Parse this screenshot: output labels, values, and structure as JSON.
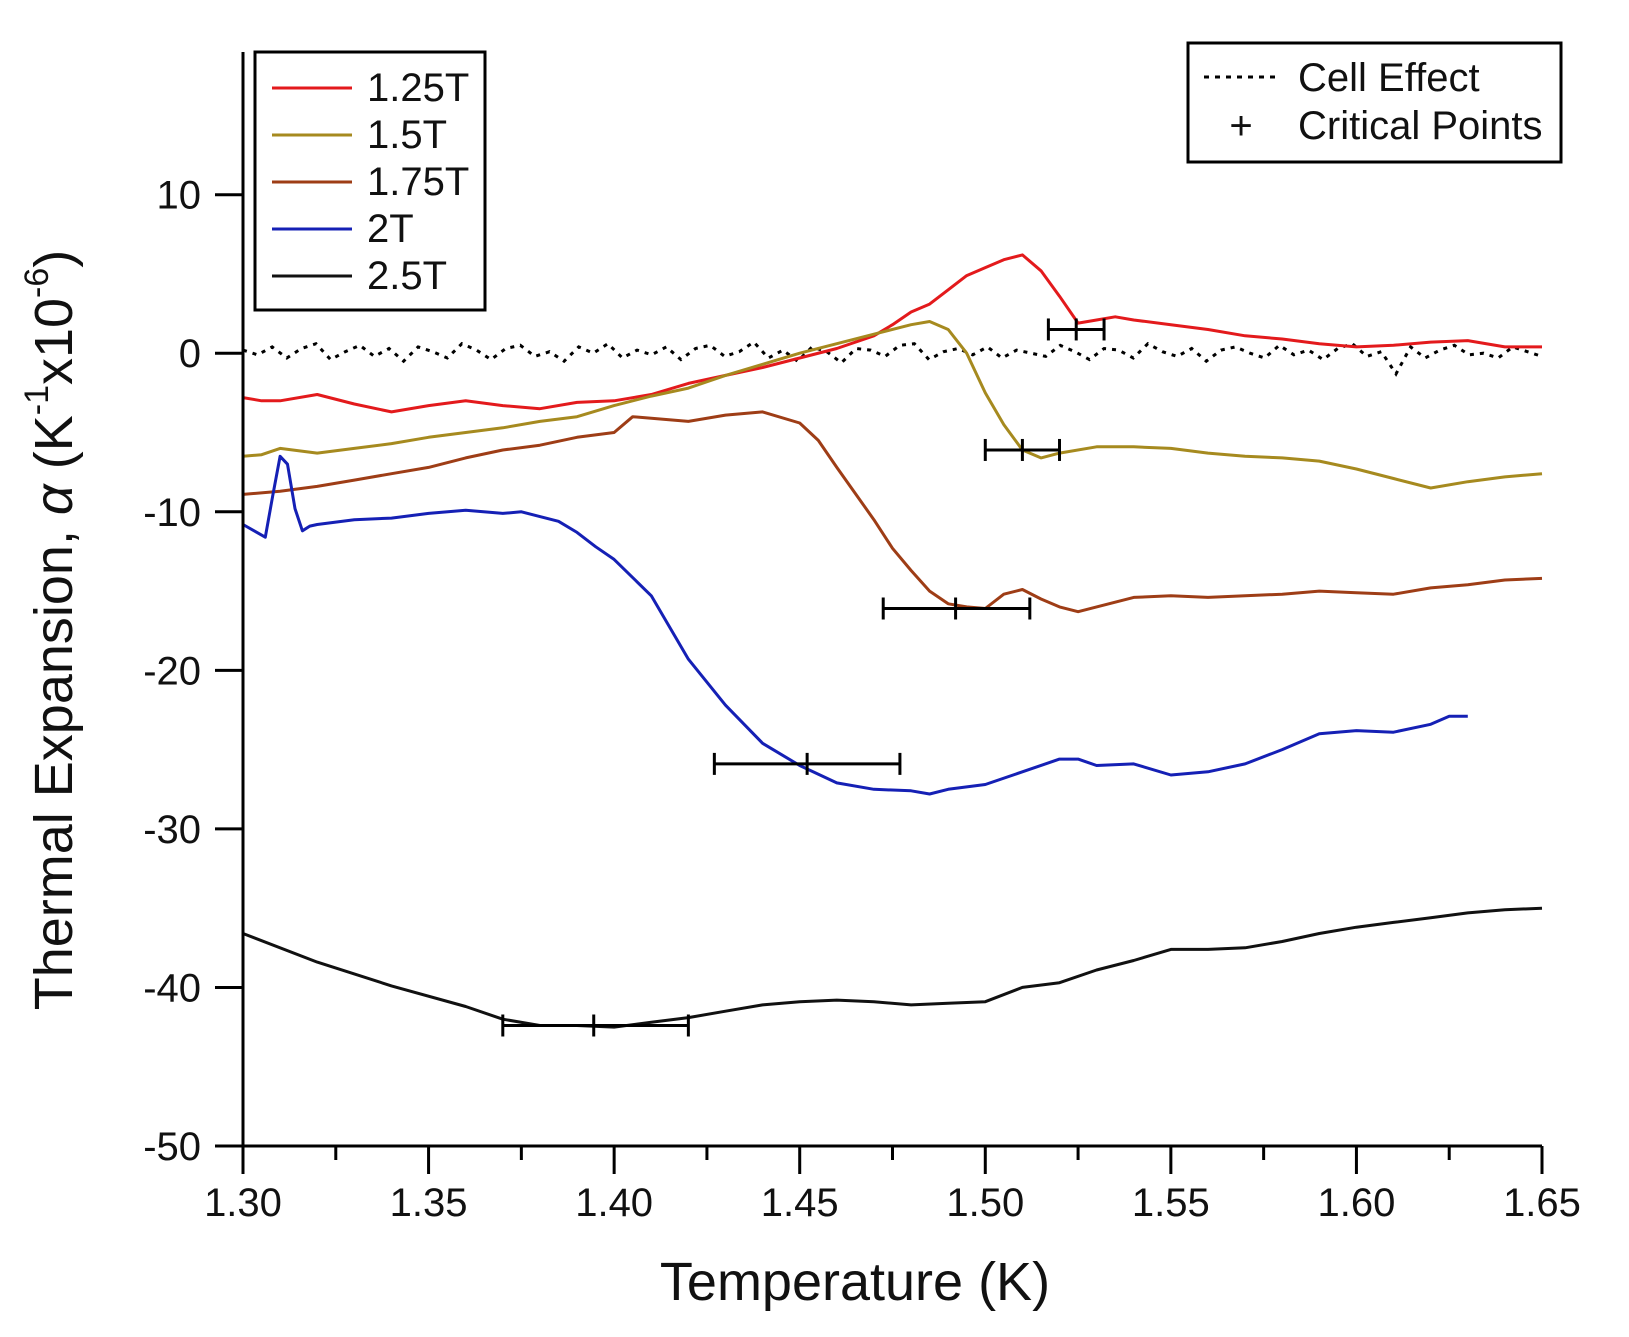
{
  "chart_data": {
    "type": "line",
    "xlabel": "Temperature (K)",
    "ylabel": {
      "prefix": "Thermal Expansion, ",
      "symbol": "α",
      "unit_open": " (K",
      "exp1": "-1",
      "unit_mid": "x10",
      "exp2": "-6",
      "unit_close": ")"
    },
    "xlim": [
      1.3,
      1.65
    ],
    "ylim": [
      -50,
      19
    ],
    "xticks": [
      1.3,
      1.35,
      1.4,
      1.45,
      1.5,
      1.55,
      1.6,
      1.65
    ],
    "xtick_labels": [
      "1.30",
      "1.35",
      "1.40",
      "1.45",
      "1.50",
      "1.55",
      "1.60",
      "1.65"
    ],
    "yticks": [
      10,
      0,
      -10,
      -20,
      -30,
      -40,
      -50
    ],
    "ytick_labels": [
      "10",
      "0",
      "-10",
      "-20",
      "-30",
      "-40",
      "-50"
    ],
    "legend": [
      "1.25T",
      "1.5T",
      "1.75T",
      "2T",
      "2.5T"
    ],
    "legend2": [
      "Cell Effect",
      "Critical Points"
    ],
    "legend2_marker": "+",
    "series": [
      {
        "name": "1.25T",
        "color": "#e31a1c",
        "x": [
          1.3,
          1.305,
          1.31,
          1.32,
          1.33,
          1.34,
          1.35,
          1.36,
          1.37,
          1.38,
          1.39,
          1.4,
          1.41,
          1.42,
          1.43,
          1.44,
          1.45,
          1.46,
          1.47,
          1.475,
          1.48,
          1.485,
          1.49,
          1.495,
          1.5,
          1.505,
          1.51,
          1.515,
          1.52,
          1.525,
          1.53,
          1.535,
          1.54,
          1.55,
          1.56,
          1.57,
          1.58,
          1.59,
          1.6,
          1.61,
          1.62,
          1.63,
          1.64,
          1.65
        ],
        "y": [
          -2.8,
          -3.0,
          -3.0,
          -2.6,
          -3.2,
          -3.7,
          -3.3,
          -3.0,
          -3.3,
          -3.5,
          -3.1,
          -3.0,
          -2.6,
          -1.9,
          -1.4,
          -0.9,
          -0.3,
          0.3,
          1.1,
          1.8,
          2.6,
          3.1,
          4.0,
          4.9,
          5.4,
          5.9,
          6.2,
          5.2,
          3.6,
          1.9,
          2.1,
          2.3,
          2.1,
          1.8,
          1.5,
          1.1,
          0.9,
          0.6,
          0.4,
          0.5,
          0.7,
          0.8,
          0.4,
          0.4
        ]
      },
      {
        "name": "1.5T",
        "color": "#a68a1f",
        "x": [
          1.3,
          1.305,
          1.31,
          1.32,
          1.33,
          1.34,
          1.35,
          1.36,
          1.37,
          1.38,
          1.39,
          1.4,
          1.41,
          1.42,
          1.43,
          1.44,
          1.45,
          1.46,
          1.47,
          1.48,
          1.485,
          1.49,
          1.495,
          1.5,
          1.505,
          1.51,
          1.515,
          1.52,
          1.53,
          1.54,
          1.55,
          1.56,
          1.57,
          1.58,
          1.59,
          1.6,
          1.61,
          1.62,
          1.63,
          1.64,
          1.65
        ],
        "y": [
          -6.5,
          -6.4,
          -6.0,
          -6.3,
          -6.0,
          -5.7,
          -5.3,
          -5.0,
          -4.7,
          -4.3,
          -4.0,
          -3.3,
          -2.7,
          -2.2,
          -1.4,
          -0.7,
          0.0,
          0.6,
          1.2,
          1.8,
          2.0,
          1.5,
          0.0,
          -2.5,
          -4.5,
          -6.1,
          -6.6,
          -6.3,
          -5.9,
          -5.9,
          -6.0,
          -6.3,
          -6.5,
          -6.6,
          -6.8,
          -7.3,
          -7.9,
          -8.5,
          -8.1,
          -7.8,
          -7.6
        ]
      },
      {
        "name": "1.75T",
        "color": "#9e3d16",
        "x": [
          1.3,
          1.31,
          1.32,
          1.33,
          1.34,
          1.35,
          1.36,
          1.37,
          1.38,
          1.39,
          1.4,
          1.405,
          1.41,
          1.42,
          1.43,
          1.44,
          1.45,
          1.455,
          1.46,
          1.47,
          1.475,
          1.48,
          1.485,
          1.49,
          1.495,
          1.5,
          1.505,
          1.51,
          1.515,
          1.52,
          1.525,
          1.53,
          1.54,
          1.55,
          1.56,
          1.57,
          1.58,
          1.59,
          1.6,
          1.61,
          1.62,
          1.63,
          1.64,
          1.65
        ],
        "y": [
          -8.9,
          -8.7,
          -8.4,
          -8.0,
          -7.6,
          -7.2,
          -6.6,
          -6.1,
          -5.8,
          -5.3,
          -5.0,
          -4.0,
          -4.1,
          -4.3,
          -3.9,
          -3.7,
          -4.4,
          -5.5,
          -7.2,
          -10.5,
          -12.3,
          -13.7,
          -15.0,
          -15.8,
          -16.0,
          -16.1,
          -15.2,
          -14.9,
          -15.5,
          -16.0,
          -16.3,
          -16.0,
          -15.4,
          -15.3,
          -15.4,
          -15.3,
          -15.2,
          -15.0,
          -15.1,
          -15.2,
          -14.8,
          -14.6,
          -14.3,
          -14.2
        ]
      },
      {
        "name": "2T",
        "color": "#1520b5",
        "x": [
          1.3,
          1.303,
          1.306,
          1.308,
          1.31,
          1.312,
          1.314,
          1.316,
          1.318,
          1.32,
          1.33,
          1.34,
          1.35,
          1.36,
          1.37,
          1.375,
          1.38,
          1.385,
          1.39,
          1.395,
          1.4,
          1.41,
          1.42,
          1.43,
          1.44,
          1.45,
          1.46,
          1.47,
          1.48,
          1.485,
          1.49,
          1.5,
          1.51,
          1.52,
          1.525,
          1.53,
          1.54,
          1.55,
          1.56,
          1.57,
          1.58,
          1.59,
          1.6,
          1.61,
          1.62,
          1.625,
          1.63
        ],
        "y": [
          -10.8,
          -11.2,
          -11.6,
          -9.0,
          -6.5,
          -7.0,
          -9.8,
          -11.2,
          -10.9,
          -10.8,
          -10.5,
          -10.4,
          -10.1,
          -9.9,
          -10.1,
          -10.0,
          -10.3,
          -10.6,
          -11.3,
          -12.2,
          -13.0,
          -15.3,
          -19.3,
          -22.2,
          -24.6,
          -26.0,
          -27.1,
          -27.5,
          -27.6,
          -27.8,
          -27.5,
          -27.2,
          -26.4,
          -25.6,
          -25.6,
          -26.0,
          -25.9,
          -26.6,
          -26.4,
          -25.9,
          -25.0,
          -24.0,
          -23.8,
          -23.9,
          -23.4,
          -22.9,
          -22.9
        ]
      },
      {
        "name": "2.5T",
        "color": "#111111",
        "x": [
          1.3,
          1.32,
          1.34,
          1.36,
          1.37,
          1.38,
          1.39,
          1.4,
          1.41,
          1.42,
          1.43,
          1.44,
          1.45,
          1.46,
          1.47,
          1.48,
          1.49,
          1.5,
          1.51,
          1.52,
          1.53,
          1.54,
          1.55,
          1.56,
          1.57,
          1.58,
          1.59,
          1.6,
          1.61,
          1.62,
          1.63,
          1.64,
          1.65
        ],
        "y": [
          -36.6,
          -38.4,
          -39.9,
          -41.2,
          -42.0,
          -42.4,
          -42.4,
          -42.5,
          -42.2,
          -41.9,
          -41.5,
          -41.1,
          -40.9,
          -40.8,
          -40.9,
          -41.1,
          -41.0,
          -40.9,
          -40.0,
          -39.7,
          -38.9,
          -38.3,
          -37.6,
          -37.6,
          -37.5,
          -37.1,
          -36.6,
          -36.2,
          -35.9,
          -35.6,
          -35.3,
          -35.1,
          -35.0
        ]
      }
    ],
    "cell_effect": {
      "name": "Cell Effect",
      "color": "#000000",
      "style": "dotted",
      "x_start": 1.3,
      "x_end": 1.65,
      "y": [
        0.2,
        -0.1,
        0.4,
        -0.3,
        0.3,
        0.6,
        -0.4,
        0.1,
        0.5,
        -0.2,
        0.3,
        -0.5,
        0.4,
        0.1,
        -0.3,
        0.6,
        0.2,
        -0.4,
        0.3,
        0.5,
        -0.2,
        0.1,
        -0.5,
        0.4,
        0.0,
        0.6,
        -0.3,
        0.2,
        -0.1,
        0.4,
        -0.4,
        0.3,
        0.5,
        -0.2,
        0.1,
        0.7,
        -0.3,
        0.2,
        -0.5,
        0.4,
        0.1,
        -0.6,
        0.3,
        0.2,
        -0.2,
        0.5,
        0.6,
        -0.4,
        0.1,
        0.3,
        -0.1,
        0.4,
        -0.3,
        0.2,
        0.0,
        -0.2,
        0.5,
        0.1,
        -0.4,
        0.3,
        0.2,
        -0.3,
        0.6,
        0.1,
        -0.2,
        0.3,
        -0.5,
        0.2,
        0.4,
        0.0,
        -0.3,
        0.5,
        -0.1,
        0.2,
        -0.4,
        0.3,
        0.6,
        -0.2,
        0.1,
        -1.3,
        0.4,
        -0.3,
        0.2,
        0.5,
        -0.1,
        0.0,
        -0.3,
        0.4,
        0.1,
        -0.2
      ]
    },
    "critical_points": [
      {
        "field": "1.25T",
        "x": 1.5245,
        "xmin": 1.517,
        "xmax": 1.532,
        "y": 1.5
      },
      {
        "field": "1.5T",
        "x": 1.51,
        "xmin": 1.5,
        "xmax": 1.52,
        "y": -6.1
      },
      {
        "field": "1.75T",
        "x": 1.492,
        "xmin": 1.4725,
        "xmax": 1.512,
        "y": -16.1
      },
      {
        "field": "2T",
        "x": 1.452,
        "xmin": 1.427,
        "xmax": 1.477,
        "y": -25.9
      },
      {
        "field": "2.5T",
        "x": 1.3945,
        "xmin": 1.37,
        "xmax": 1.42,
        "y": -42.4
      }
    ]
  }
}
